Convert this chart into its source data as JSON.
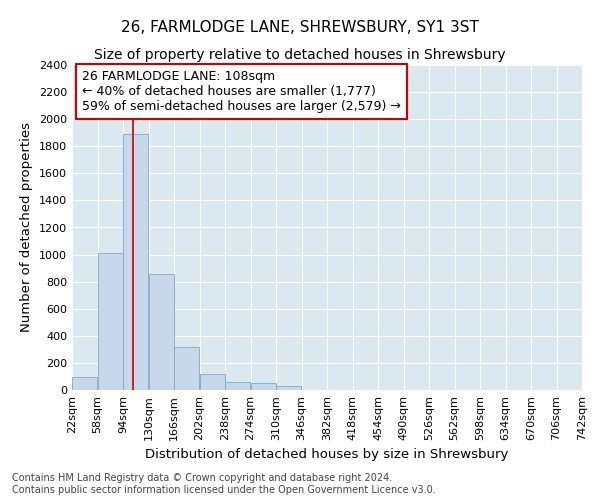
{
  "title": "26, FARMLODGE LANE, SHREWSBURY, SY1 3ST",
  "subtitle": "Size of property relative to detached houses in Shrewsbury",
  "xlabel": "Distribution of detached houses by size in Shrewsbury",
  "ylabel": "Number of detached properties",
  "footer_line1": "Contains HM Land Registry data © Crown copyright and database right 2024.",
  "footer_line2": "Contains public sector information licensed under the Open Government Licence v3.0.",
  "bar_edges": [
    22,
    58,
    94,
    130,
    166,
    202,
    238,
    274,
    310,
    346,
    382,
    418,
    454,
    490,
    526,
    562,
    598,
    634,
    670,
    706,
    742
  ],
  "bar_values": [
    95,
    1010,
    1890,
    860,
    315,
    120,
    58,
    50,
    30,
    0,
    0,
    0,
    0,
    0,
    0,
    0,
    0,
    0,
    0,
    0
  ],
  "bar_color": "#c8d8ea",
  "bar_edge_color": "#7aaac8",
  "property_size": 108,
  "red_line_color": "#cc0000",
  "annotation_line1": "26 FARMLODGE LANE: 108sqm",
  "annotation_line2": "← 40% of detached houses are smaller (1,777)",
  "annotation_line3": "59% of semi-detached houses are larger (2,579) →",
  "annotation_box_color": "#ffffff",
  "annotation_box_edge_color": "#cc0000",
  "ylim": [
    0,
    2400
  ],
  "yticks": [
    0,
    200,
    400,
    600,
    800,
    1000,
    1200,
    1400,
    1600,
    1800,
    2000,
    2200,
    2400
  ],
  "bg_color": "#ffffff",
  "plot_bg_color": "#dce8f0",
  "grid_color": "#ffffff",
  "title_fontsize": 11,
  "subtitle_fontsize": 10,
  "axis_label_fontsize": 9.5,
  "tick_fontsize": 8,
  "annotation_fontsize": 9,
  "footer_fontsize": 7
}
